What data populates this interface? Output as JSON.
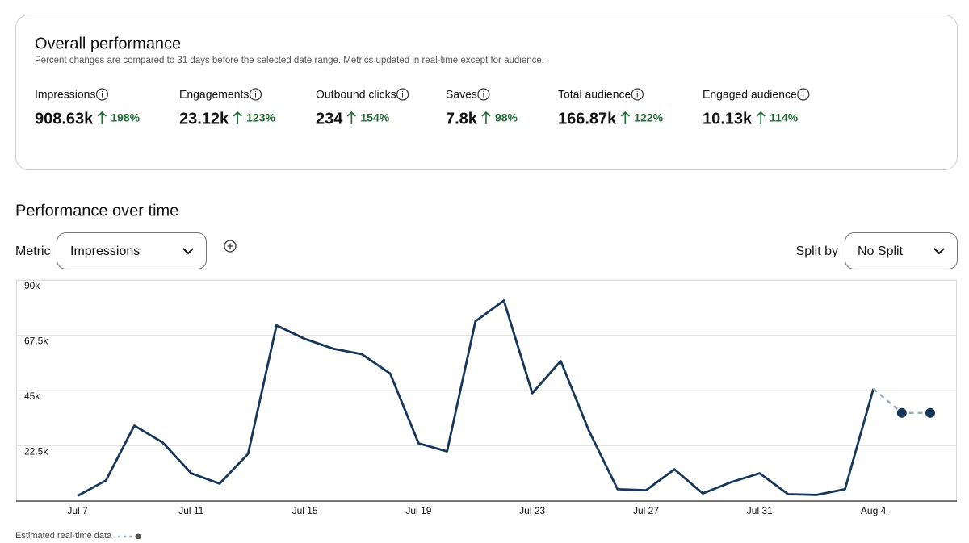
{
  "header": {
    "title": "Overall performance",
    "subtitle": "Percent changes are compared to 31 days before the selected date range. Metrics updated in real-time except for audience.",
    "metrics": [
      {
        "name": "Impressions",
        "value": "908.63k",
        "change": "198%"
      },
      {
        "name": "Engagements",
        "value": "23.12k",
        "change": "123%"
      },
      {
        "name": "Outbound clicks",
        "value": "234",
        "change": "154%"
      },
      {
        "name": "Saves",
        "value": "7.8k",
        "change": "98%"
      },
      {
        "name": "Total audience",
        "value": "166.87k",
        "change": "122%"
      },
      {
        "name": "Engaged audience",
        "value": "10.13k",
        "change": "114%"
      }
    ]
  },
  "controls": {
    "section_title": "Performance over time",
    "metric_label": "Metric",
    "metric_value": "Impressions",
    "split_label": "Split by",
    "split_value": "No Split"
  },
  "chart_data": {
    "type": "line",
    "categories": [
      "Jul 7",
      null,
      null,
      null,
      "Jul 11",
      null,
      null,
      null,
      "Jul 15",
      null,
      null,
      null,
      "Jul 19",
      null,
      null,
      null,
      "Jul 23",
      null,
      null,
      null,
      "Jul 27",
      null,
      null,
      null,
      "Jul 31",
      null,
      null,
      null,
      "Aug 4",
      null,
      null
    ],
    "series": [
      {
        "color": "#17375a",
        "values": [
          2100,
          8400,
          30700,
          23800,
          11300,
          7100,
          19200,
          71500,
          66000,
          62000,
          59800,
          51900,
          23500,
          20200,
          73200,
          81600,
          43900,
          57000,
          28400,
          4800,
          4400,
          12900,
          3100,
          7700,
          11300,
          2800,
          2500,
          4800,
          45700,
          null,
          null
        ]
      },
      {
        "name": "Estimated real-time data",
        "color": "#9aabbb",
        "values": [
          null,
          null,
          null,
          null,
          null,
          null,
          null,
          null,
          null,
          null,
          null,
          null,
          null,
          null,
          null,
          null,
          null,
          null,
          null,
          null,
          null,
          null,
          null,
          null,
          null,
          null,
          null,
          null,
          45700,
          35900,
          35900
        ]
      }
    ],
    "ylim": [
      0,
      90000
    ],
    "yticks": [
      {
        "value": 22500,
        "label": "22.5k"
      },
      {
        "value": 45000,
        "label": "45k"
      },
      {
        "value": 67500,
        "label": "67.5k"
      },
      {
        "value": 90000,
        "label": "90k"
      }
    ],
    "grid": true
  }
}
